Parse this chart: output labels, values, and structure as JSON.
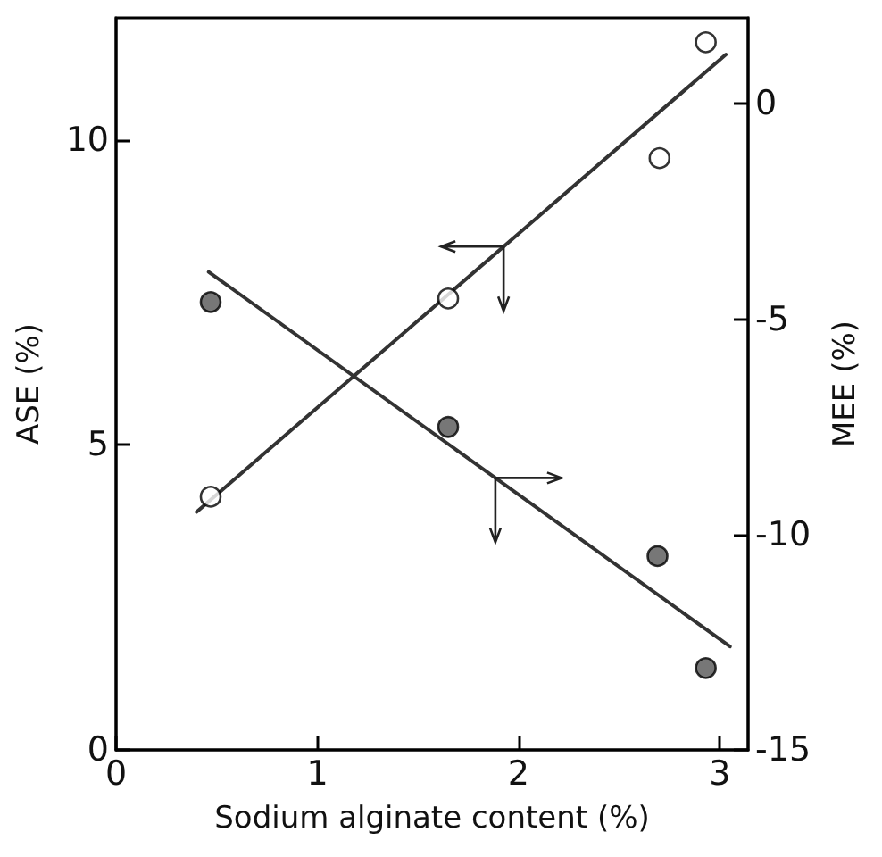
{
  "chart_data": {
    "type": "scatter",
    "xlabel": "Sodium alginate content (%)",
    "ylabel": "ASE (%)",
    "y2label": "MEE (%)",
    "xlim": [
      0,
      3.14
    ],
    "xticks": [
      0,
      1,
      2,
      3
    ],
    "ylim": [
      0,
      12
    ],
    "yticks": [
      0,
      5,
      10
    ],
    "y2lim": [
      -15,
      2
    ],
    "y2ticks": [
      -15,
      -10,
      -5,
      0
    ],
    "grid": false,
    "series": [
      {
        "type": "scatter",
        "marker": "circle",
        "color": "#ffffff",
        "x": [
          0.47,
          1.65,
          2.7,
          2.93
        ],
        "values": [
          4.15,
          7.4,
          9.7,
          11.6
        ]
      },
      {
        "type": "scatter",
        "marker": "circle",
        "color": "#555555",
        "axis": "y2",
        "x": [
          0.47,
          1.65,
          2.69,
          2.93
        ],
        "values": [
          -4.6,
          -7.5,
          -10.5,
          -13.1
        ]
      },
      {
        "type": "line",
        "marker": "none",
        "color": "#333333",
        "x": [
          0.4,
          3.03
        ],
        "values": [
          3.9,
          11.4
        ]
      },
      {
        "type": "line",
        "marker": "none",
        "color": "#333333",
        "axis": "y2",
        "x": [
          0.46,
          3.05
        ],
        "values": [
          -3.9,
          -12.6
        ]
      }
    ]
  }
}
